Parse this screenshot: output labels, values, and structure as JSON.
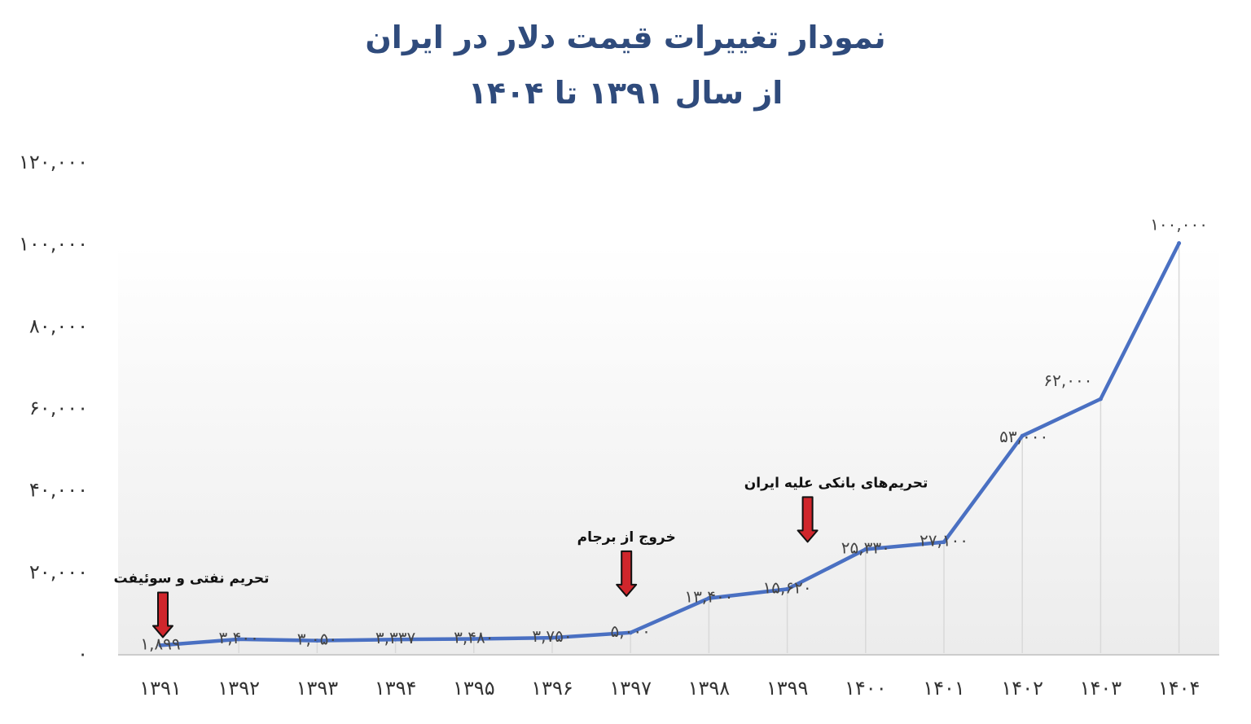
{
  "title": "نمودار تغییرات قیمت دلار در ایران",
  "subtitle": "از سال ۱۳۹۱ تا ۱۴۰۴",
  "colors": {
    "title": "#2f4b7c",
    "line": "#4a70c2",
    "arrow": "#d0262c",
    "axis": "#cccccc"
  },
  "chart_data": {
    "type": "line",
    "categories": [
      "۱۳۹۱",
      "۱۳۹۲",
      "۱۳۹۳",
      "۱۳۹۴",
      "۱۳۹۵",
      "۱۳۹۶",
      "۱۳۹۷",
      "۱۳۹۸",
      "۱۳۹۹",
      "۱۴۰۰",
      "۱۴۰۱",
      "۱۴۰۲",
      "۱۴۰۳",
      "۱۴۰۴"
    ],
    "values": [
      1899,
      3400,
      3050,
      3337,
      3480,
      3750,
      5000,
      13400,
      15620,
      25330,
      27100,
      53000,
      62000,
      100000
    ],
    "data_labels": [
      "۱,۸۹۹",
      "۳,۴۰۰",
      "۳,۰۵۰",
      "۳,۳۳۷",
      "۳,۴۸۰",
      "۳,۷۵۰",
      "۵,۰۰۰",
      "۱۳,۴۰۰",
      "۱۵,۶۲۰",
      "۲۵,۳۳۰",
      "۲۷,۱۰۰",
      "۵۳,۰۰۰",
      "۶۲,۰۰۰",
      "۱۰۰,۰۰۰"
    ],
    "ylim": [
      0,
      120000
    ],
    "yticks": [
      0,
      20000,
      40000,
      60000,
      80000,
      100000,
      120000
    ],
    "ytick_labels": [
      "۰",
      "۲۰,۰۰۰",
      "۴۰,۰۰۰",
      "۶۰,۰۰۰",
      "۸۰,۰۰۰",
      "۱۰۰,۰۰۰",
      "۱۲۰,۰۰۰"
    ],
    "grid": false,
    "annotations": [
      {
        "text": "تحریم نفتی و سوئیفت",
        "category_index": 0
      },
      {
        "text": "خروج از برجام",
        "category_index": 6
      },
      {
        "text": "تحریم‌های بانکی علیه ایران",
        "category_index": 8
      }
    ]
  }
}
